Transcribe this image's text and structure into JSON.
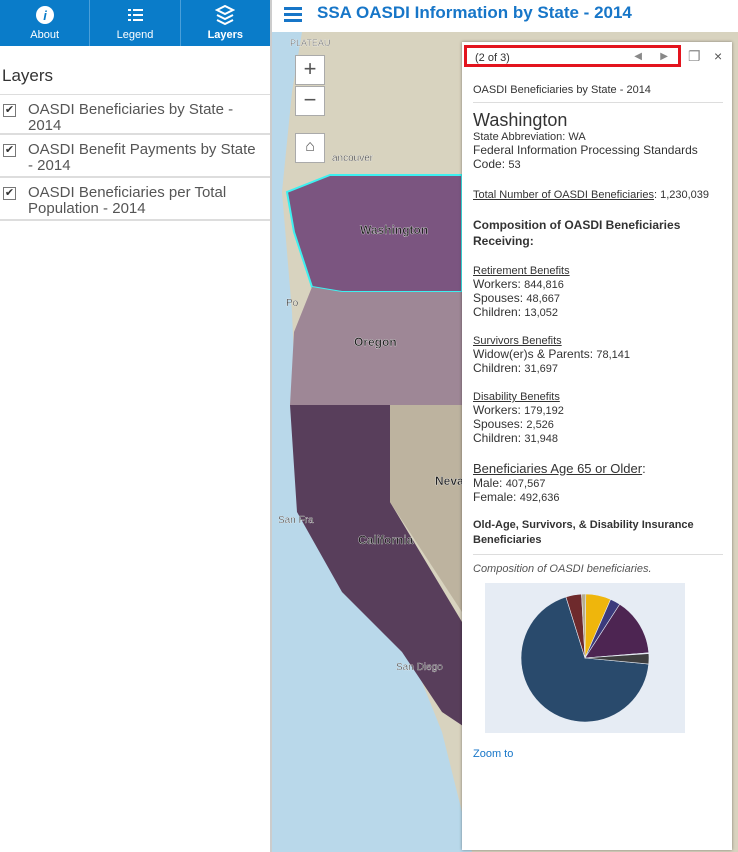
{
  "sidebar": {
    "tabs": [
      "About",
      "Legend",
      "Layers"
    ],
    "heading": "Layers",
    "layers": [
      "OASDI Beneficiaries by State - 2014",
      "OASDI Benefit Payments by State - 2014",
      "OASDI Beneficiaries per Total Population - 2014"
    ]
  },
  "header": {
    "title": "SSA OASDI Information by State - 2014"
  },
  "map": {
    "labels": [
      "PLATEAU",
      "ancouver",
      "Po",
      "Washington",
      "Oregon",
      "California",
      "Neva",
      "San Fra",
      "San Diego"
    ]
  },
  "popup": {
    "pager": "(2 of 3)",
    "layer": "OASDI Beneficiaries by State - 2014",
    "name": "Washington",
    "abbr_label": "State Abbreviation:",
    "abbr": "WA",
    "fips_label": "Federal Information Processing Standards Code:",
    "fips": "53",
    "total_label": "Total Number of OASDI Beneficiaries",
    "total": {
      "value": 1230039,
      "label": "1,230,039"
    },
    "composition_heading": "Composition of OASDI Beneficiaries Receiving:",
    "groups": [
      {
        "title": "Retirement Benefits",
        "items": [
          {
            "label": "Workers:",
            "count": {
              "value": 844816,
              "label": "844,816"
            },
            "color": "#294a6c"
          },
          {
            "label": "Spouses:",
            "count": {
              "value": 48667,
              "label": "48,667"
            },
            "color": "#6e2a2c"
          },
          {
            "label": "Children:",
            "count": {
              "value": 13052,
              "label": "13,052"
            },
            "color": "#b7ad8c"
          }
        ]
      },
      {
        "title": "Survivors Benefits",
        "items": [
          {
            "label": "Widow(er)s & Parents:",
            "count": {
              "value": 78141,
              "label": "78,141"
            },
            "color": "#efb60c"
          },
          {
            "label": "Children:",
            "count": {
              "value": 31697,
              "label": "31,697"
            },
            "color": "#3b3a7c"
          }
        ]
      },
      {
        "title": "Disability Benefits",
        "items": [
          {
            "label": "Workers:",
            "count": {
              "value": 179192,
              "label": "179,192"
            },
            "color": "#4d2552"
          },
          {
            "label": "Spouses:",
            "count": {
              "value": 2526,
              "label": "2,526"
            },
            "color": "#c9c9c9"
          },
          {
            "label": "Children:",
            "count": {
              "value": 31948,
              "label": "31,948"
            },
            "color": "#3e3e3e"
          }
        ]
      }
    ],
    "age_heading": "Beneficiaries Age 65 or Older",
    "age_items": [
      {
        "label": "Male:",
        "count": {
          "value": 407567,
          "label": "407,567"
        }
      },
      {
        "label": "Female:",
        "count": {
          "value": 492636,
          "label": "492,636"
        }
      }
    ],
    "chart_heading": "Old-Age, Survivors, & Disability Insurance Beneficiaries",
    "chart_caption": "Composition of OASDI beneficiaries.",
    "zoom": "Zoom to"
  }
}
